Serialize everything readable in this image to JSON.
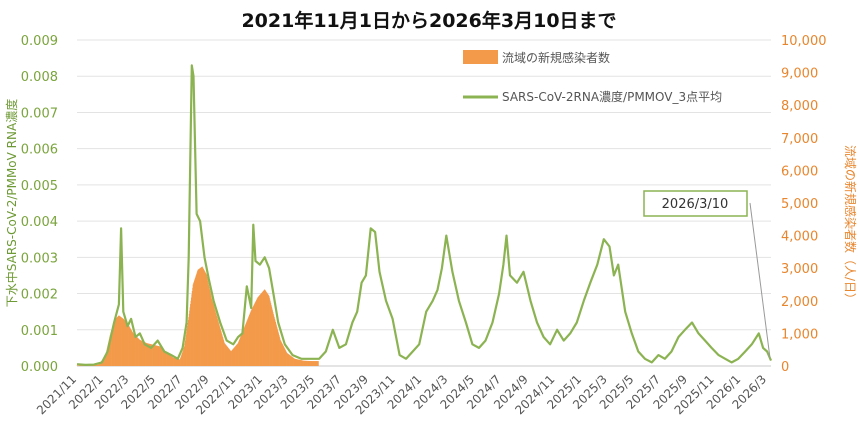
{
  "chart_data": {
    "type": "bar+line",
    "title": "2021年11月1日から2026年3月10日まで",
    "ylabel_left": "下水中SARS-CoV-2/PMMoV RNA濃度",
    "ylabel_right": "流域の新規感染者数（人/日）",
    "ylim_left": [
      0,
      0.009
    ],
    "ylim_right": [
      0,
      10000
    ],
    "yticks_left": [
      "0.000",
      "0.001",
      "0.002",
      "0.003",
      "0.004",
      "0.005",
      "0.006",
      "0.007",
      "0.008",
      "0.009"
    ],
    "yticks_right": [
      "0",
      "1,000",
      "2,000",
      "3,000",
      "4,000",
      "5,000",
      "6,000",
      "7,000",
      "8,000",
      "9,000",
      "10,000"
    ],
    "x_range": [
      "2021-11-01",
      "2026-03-10"
    ],
    "xticks": [
      "2021/11",
      "2022/1",
      "2022/3",
      "2022/5",
      "2022/7",
      "2022/9",
      "2022/11",
      "2023/1",
      "2023/3",
      "2023/5",
      "2023/7",
      "2023/9",
      "2023/11",
      "2024/1",
      "2024/3",
      "2024/5",
      "2024/7",
      "2024/9",
      "2024/11",
      "2025/1",
      "2025/3",
      "2025/5",
      "2025/7",
      "2025/9",
      "2025/11",
      "2026/1",
      "2026/3"
    ],
    "grid": true,
    "legend_position": "top",
    "colors": {
      "bar": "#f39a4a",
      "line": "#8cb352",
      "left_axis": "#7aa43c",
      "right_axis": "#e8862e"
    },
    "series": [
      {
        "name": "流域の新規感染者数",
        "type": "bar",
        "axis": "right",
        "points": [
          [
            "2021-11-01",
            10
          ],
          [
            "2021-12-01",
            15
          ],
          [
            "2021-12-20",
            40
          ],
          [
            "2022-01-05",
            300
          ],
          [
            "2022-01-15",
            900
          ],
          [
            "2022-01-25",
            1400
          ],
          [
            "2022-02-05",
            1550
          ],
          [
            "2022-02-15",
            1450
          ],
          [
            "2022-02-25",
            1300
          ],
          [
            "2022-03-10",
            1000
          ],
          [
            "2022-03-25",
            800
          ],
          [
            "2022-04-10",
            700
          ],
          [
            "2022-04-25",
            650
          ],
          [
            "2022-05-10",
            600
          ],
          [
            "2022-05-25",
            400
          ],
          [
            "2022-06-10",
            250
          ],
          [
            "2022-06-25",
            200
          ],
          [
            "2022-07-05",
            600
          ],
          [
            "2022-07-15",
            1500
          ],
          [
            "2022-07-25",
            2500
          ],
          [
            "2022-08-05",
            2950
          ],
          [
            "2022-08-15",
            3050
          ],
          [
            "2022-08-25",
            2800
          ],
          [
            "2022-09-05",
            2100
          ],
          [
            "2022-09-20",
            1400
          ],
          [
            "2022-10-05",
            700
          ],
          [
            "2022-10-20",
            450
          ],
          [
            "2022-11-05",
            700
          ],
          [
            "2022-11-20",
            1200
          ],
          [
            "2022-12-05",
            1700
          ],
          [
            "2022-12-20",
            2100
          ],
          [
            "2023-01-05",
            2350
          ],
          [
            "2023-01-15",
            2150
          ],
          [
            "2023-01-25",
            1600
          ],
          [
            "2023-02-10",
            800
          ],
          [
            "2023-02-25",
            400
          ],
          [
            "2023-03-15",
            220
          ],
          [
            "2023-04-05",
            160
          ],
          [
            "2023-04-25",
            150
          ],
          [
            "2023-05-08",
            150
          ]
        ]
      },
      {
        "name": "SARS-CoV-2RNA濃度/PMMOV_3点平均",
        "type": "line",
        "axis": "left",
        "points": [
          [
            "2021-11-01",
            5e-05
          ],
          [
            "2021-11-20",
            3e-05
          ],
          [
            "2021-12-10",
            4e-05
          ],
          [
            "2021-12-28",
            0.0001
          ],
          [
            "2022-01-10",
            0.0004
          ],
          [
            "2022-01-25",
            0.0012
          ],
          [
            "2022-02-05",
            0.0017
          ],
          [
            "2022-02-10",
            0.0038
          ],
          [
            "2022-02-15",
            0.0015
          ],
          [
            "2022-02-25",
            0.0011
          ],
          [
            "2022-03-05",
            0.0013
          ],
          [
            "2022-03-15",
            0.0008
          ],
          [
            "2022-03-25",
            0.0009
          ],
          [
            "2022-04-05",
            0.0006
          ],
          [
            "2022-04-20",
            0.0005
          ],
          [
            "2022-05-05",
            0.0007
          ],
          [
            "2022-05-20",
            0.0004
          ],
          [
            "2022-06-05",
            0.0003
          ],
          [
            "2022-06-20",
            0.0002
          ],
          [
            "2022-07-01",
            0.0005
          ],
          [
            "2022-07-10",
            0.0012
          ],
          [
            "2022-07-15",
            0.003
          ],
          [
            "2022-07-22",
            0.0083
          ],
          [
            "2022-07-26",
            0.008
          ],
          [
            "2022-08-02",
            0.0042
          ],
          [
            "2022-08-10",
            0.004
          ],
          [
            "2022-08-20",
            0.003
          ],
          [
            "2022-08-30",
            0.0024
          ],
          [
            "2022-09-10",
            0.0018
          ],
          [
            "2022-09-25",
            0.0012
          ],
          [
            "2022-10-10",
            0.0007
          ],
          [
            "2022-10-25",
            0.0006
          ],
          [
            "2022-11-05",
            0.0008
          ],
          [
            "2022-11-15",
            0.0009
          ],
          [
            "2022-11-25",
            0.0022
          ],
          [
            "2022-12-05",
            0.0016
          ],
          [
            "2022-12-10",
            0.0039
          ],
          [
            "2022-12-15",
            0.0029
          ],
          [
            "2022-12-25",
            0.0028
          ],
          [
            "2023-01-05",
            0.003
          ],
          [
            "2023-01-15",
            0.0027
          ],
          [
            "2023-01-25",
            0.002
          ],
          [
            "2023-02-05",
            0.0012
          ],
          [
            "2023-02-20",
            0.0006
          ],
          [
            "2023-03-10",
            0.0003
          ],
          [
            "2023-03-30",
            0.0002
          ],
          [
            "2023-04-20",
            0.0002
          ],
          [
            "2023-05-10",
            0.0002
          ],
          [
            "2023-05-25",
            0.0004
          ],
          [
            "2023-06-10",
            0.001
          ],
          [
            "2023-06-25",
            0.0005
          ],
          [
            "2023-07-10",
            0.0006
          ],
          [
            "2023-07-25",
            0.0012
          ],
          [
            "2023-08-05",
            0.0015
          ],
          [
            "2023-08-15",
            0.0023
          ],
          [
            "2023-08-25",
            0.0025
          ],
          [
            "2023-09-05",
            0.0038
          ],
          [
            "2023-09-15",
            0.0037
          ],
          [
            "2023-09-25",
            0.0026
          ],
          [
            "2023-10-10",
            0.0018
          ],
          [
            "2023-10-25",
            0.0013
          ],
          [
            "2023-11-10",
            0.0003
          ],
          [
            "2023-11-25",
            0.0002
          ],
          [
            "2023-12-10",
            0.0004
          ],
          [
            "2023-12-25",
            0.0006
          ],
          [
            "2024-01-10",
            0.0015
          ],
          [
            "2024-01-25",
            0.0018
          ],
          [
            "2024-02-05",
            0.0021
          ],
          [
            "2024-02-15",
            0.0027
          ],
          [
            "2024-02-25",
            0.0036
          ],
          [
            "2024-03-10",
            0.0026
          ],
          [
            "2024-03-25",
            0.0018
          ],
          [
            "2024-04-10",
            0.0012
          ],
          [
            "2024-04-25",
            0.0006
          ],
          [
            "2024-05-10",
            0.0005
          ],
          [
            "2024-05-25",
            0.0007
          ],
          [
            "2024-06-10",
            0.0012
          ],
          [
            "2024-06-25",
            0.002
          ],
          [
            "2024-07-05",
            0.0028
          ],
          [
            "2024-07-12",
            0.0036
          ],
          [
            "2024-07-20",
            0.0025
          ],
          [
            "2024-08-05",
            0.0023
          ],
          [
            "2024-08-20",
            0.0026
          ],
          [
            "2024-09-05",
            0.0018
          ],
          [
            "2024-09-20",
            0.0012
          ],
          [
            "2024-10-05",
            0.0008
          ],
          [
            "2024-10-20",
            0.0006
          ],
          [
            "2024-11-05",
            0.001
          ],
          [
            "2024-11-20",
            0.0007
          ],
          [
            "2024-12-05",
            0.0009
          ],
          [
            "2024-12-20",
            0.0012
          ],
          [
            "2025-01-05",
            0.0018
          ],
          [
            "2025-01-20",
            0.0023
          ],
          [
            "2025-02-05",
            0.0028
          ],
          [
            "2025-02-20",
            0.0035
          ],
          [
            "2025-03-05",
            0.0033
          ],
          [
            "2025-03-15",
            0.0025
          ],
          [
            "2025-03-25",
            0.0028
          ],
          [
            "2025-04-10",
            0.0015
          ],
          [
            "2025-04-25",
            0.0009
          ],
          [
            "2025-05-10",
            0.0004
          ],
          [
            "2025-05-25",
            0.0002
          ],
          [
            "2025-06-10",
            0.0001
          ],
          [
            "2025-06-25",
            0.0003
          ],
          [
            "2025-07-10",
            0.0002
          ],
          [
            "2025-07-25",
            0.0004
          ],
          [
            "2025-08-10",
            0.0008
          ],
          [
            "2025-08-25",
            0.001
          ],
          [
            "2025-09-10",
            0.0012
          ],
          [
            "2025-09-25",
            0.0009
          ],
          [
            "2025-10-10",
            0.0007
          ],
          [
            "2025-10-25",
            0.0005
          ],
          [
            "2025-11-10",
            0.0003
          ],
          [
            "2025-11-25",
            0.0002
          ],
          [
            "2025-12-10",
            0.0001
          ],
          [
            "2025-12-25",
            0.0002
          ],
          [
            "2026-01-10",
            0.0004
          ],
          [
            "2026-01-25",
            0.0006
          ],
          [
            "2026-02-10",
            0.0009
          ],
          [
            "2026-02-20",
            0.0005
          ],
          [
            "2026-03-01",
            0.0004
          ],
          [
            "2026-03-10",
            0.00015
          ]
        ]
      }
    ],
    "annotations": [
      {
        "text": "2026/3/10",
        "x": "2026-03-10"
      }
    ]
  }
}
